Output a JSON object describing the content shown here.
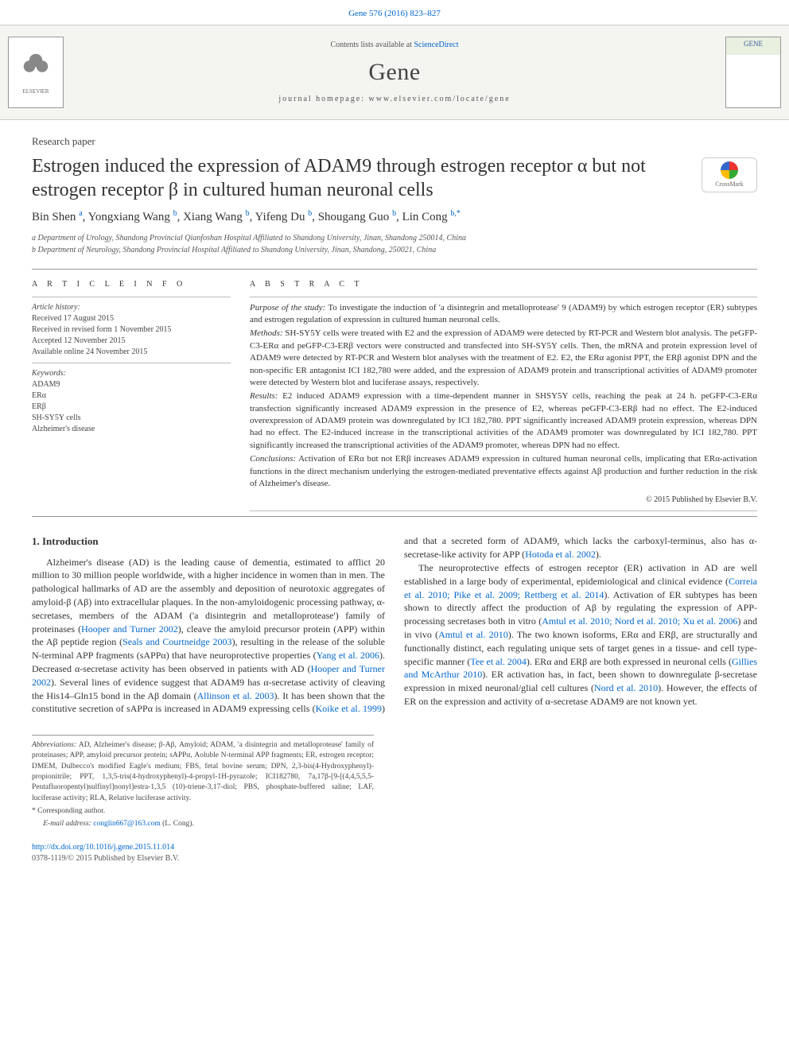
{
  "citation": "Gene 576 (2016) 823–827",
  "header": {
    "contents_prefix": "Contents lists available at ",
    "contents_link": "ScienceDirect",
    "journal_name": "Gene",
    "homepage_prefix": "journal homepage: ",
    "homepage_url": "www.elsevier.com/locate/gene",
    "publisher_name": "ELSEVIER",
    "cover_label": "GENE"
  },
  "article": {
    "type": "Research paper",
    "title": "Estrogen induced the expression of ADAM9 through estrogen receptor α but not estrogen receptor β in cultured human neuronal cells",
    "crossmark_label": "CrossMark"
  },
  "authors_line": "Bin Shen <sup>a</sup>, Yongxiang Wang <sup>b</sup>, Xiang Wang <sup>b</sup>, Yifeng Du <sup>b</sup>, Shougang Guo <sup>b</sup>, Lin Cong <sup>b,*</sup>",
  "affiliations": [
    "a Department of Urology, Shandong Provincial Qianfoshan Hospital Affiliated to Shandong University, Jinan, Shandong 250014, China",
    "b Department of Neurology, Shandong Provincial Hospital Affiliated to Shandong University, Jinan, Shandong, 250021, China"
  ],
  "article_info": {
    "head": "A R T I C L E   I N F O",
    "history_head": "Article history:",
    "history": [
      "Received 17 August 2015",
      "Received in revised form 1 November 2015",
      "Accepted 12 November 2015",
      "Available online 24 November 2015"
    ],
    "keywords_head": "Keywords:",
    "keywords": [
      "ADAM9",
      "ERα",
      "ERβ",
      "SH-SY5Y cells",
      "Alzheimer's disease"
    ]
  },
  "abstract": {
    "head": "A B S T R A C T",
    "purpose_label": "Purpose of the study:",
    "purpose": " To investigate the induction of 'a disintegrin and metalloprotease' 9 (ADAM9) by which estrogen receptor (ER) subtypes and estrogen regulation of expression in cultured human neuronal cells.",
    "methods_label": "Methods:",
    "methods": " SH-SY5Y cells were treated with E2 and the expression of ADAM9 were detected by RT-PCR and Western blot analysis. The peGFP-C3-ERα and peGFP-C3-ERβ vectors were constructed and transfected into SH-SY5Y cells. Then, the mRNA and protein expression level of ADAM9 were detected by RT-PCR and Western blot analyses with the treatment of E2. E2, the ERα agonist PPT, the ERβ agonist DPN and the non-specific ER antagonist ICI 182,780 were added, and the expression of ADAM9 protein and transcriptional activities of ADAM9 promoter were detected by Western blot and luciferase assays, respectively.",
    "results_label": "Results:",
    "results": " E2 induced ADAM9 expression with a time-dependent manner in SHSY5Y cells, reaching the peak at 24 h. peGFP-C3-ERα transfection significantly increased ADAM9 expression in the presence of E2, whereas peGFP-C3-ERβ had no effect. The E2-induced overexpression of ADAM9 protein was downregulated by ICI 182,780. PPT significantly increased ADAM9 protein expression, whereas DPN had no effect. The E2-induced increase in the transcriptional activities of the ADAM9 promoter was downregulated by ICI 182,780. PPT significantly increased the transcriptional activities of the ADAM9 promoter, whereas DPN had no effect.",
    "conclusions_label": "Conclusions:",
    "conclusions": " Activation of ERα but not ERβ increases ADAM9 expression in cultured human neuronal cells, implicating that ERα-activation functions in the direct mechanism underlying the estrogen-mediated preventative effects against Aβ production and further reduction in the risk of Alzheimer's disease.",
    "copyright": "© 2015 Published by Elsevier B.V."
  },
  "intro": {
    "heading": "1. Introduction",
    "p1a": "Alzheimer's disease (AD) is the leading cause of dementia, estimated to afflict 20 million to 30 million people worldwide, with a higher incidence in women than in men. The pathological hallmarks of AD are the assembly and deposition of neurotoxic aggregates of amyloid-β (Aβ) into extracellular plaques. In the non-amyloidogenic processing pathway, α-secretases, members of the ADAM ('a disintegrin and metalloprotease') family of proteinases (",
    "p1_link1": "Hooper and Turner 2002",
    "p1b": "), cleave the amyloid precursor protein (APP) within the Aβ peptide region (",
    "p1_link2": "Seals and Courtneidge 2003",
    "p1c": "), resulting in the release of the soluble N-terminal APP fragments (sAPPα) that have neuroprotective properties (",
    "p1_link3": "Yang et al. 2006",
    "p1d": "). Decreased α-secretase activity has been observed in patients with AD (",
    "p1_link4": "Hooper and Turner 2002",
    "p1e": "). Several lines of evidence suggest that ADAM9 has α-secretase activity of cleaving the His14–Gln15 bond in the Aβ domain (",
    "p1_link5": "Allinson et al. 2003",
    "p1f": "). It has been shown that the constitutive secretion of sAPPα is increased in ADAM9 expressing cells (",
    "p1_link6": "Koike et al. 1999",
    "p1g": ") and that a secreted form of ADAM9, which lacks the carboxyl-terminus, also has α-secretase-like activity for APP (",
    "p1_link7": "Hotoda et al. 2002",
    "p1h": ").",
    "p2a": "The neuroprotective effects of estrogen receptor (ER) activation in AD are well established in a large body of experimental, epidemiological and clinical evidence (",
    "p2_link1": "Correia et al. 2010; Pike et al. 2009; Rettberg et al. 2014",
    "p2b": "). Activation of ER subtypes has been shown to directly affect the production of Aβ by regulating the expression of APP-processing secretases both in vitro (",
    "p2_link2": "Amtul et al. 2010; Nord et al. 2010; Xu et al. 2006",
    "p2c": ") and in vivo (",
    "p2_link3": "Amtul et al. 2010",
    "p2d": "). The two known isoforms, ERα and ERβ, are structurally and functionally distinct, each regulating unique sets of target genes in a tissue- and cell type-specific manner (",
    "p2_link4": "Tee et al. 2004",
    "p2e": "). ERα and ERβ are both expressed in neuronal cells (",
    "p2_link5": "Gillies and McArthur 2010",
    "p2f": "). ER activation has, in fact, been shown to downregulate β-secretase expression in mixed neuronal/glial cell cultures (",
    "p2_link6": "Nord et al. 2010",
    "p2g": "). However, the effects of ER on the expression and activity of α-secretase ADAM9 are not known yet."
  },
  "footnotes": {
    "abbrev_label": "Abbreviations:",
    "abbrev": " AD, Alzheimer's disease; β-Aβ, Amyloid; ADAM, 'a disintegrin and metalloprotease' family of proteinases; APP, amyloid precursor protein; sAPPα, Aoluble N-terminal APP fragments; ER, estrogen receptor; DMEM, Dulbecco's modified Eagle's medium; FBS, fetal bovine serum; DPN, 2,3-bis(4-Hydroxyphenyl)-propionitrile; PPT, 1,3,5-tris(4-hydroxyphenyl)-4-propyl-1H-pyrazole; ICI182780, 7a,17β-[9-[(4,4,5,5,5-Pentafluoropentyl)sulfinyl]nonyl]estra-1,3,5 (10)-triene-3,17-diol; PBS, phosphate-buffered saline; LAF, luciferase activity; RLA, Relative luciferase activity.",
    "corr_label": "* Corresponding author.",
    "email_label": "E-mail address: ",
    "email": "conglin667@163.com",
    "email_suffix": " (L. Cong)."
  },
  "doi": {
    "url": "http://dx.doi.org/10.1016/j.gene.2015.11.014",
    "issn_line": "0378-1119/© 2015 Published by Elsevier B.V."
  },
  "colors": {
    "link": "#0066cc",
    "text": "#333333",
    "muted": "#555555",
    "rule": "#999999",
    "band_bg": "#f4f4f0"
  },
  "typography": {
    "title_fontsize_pt": 18,
    "journal_fontsize_pt": 22,
    "body_fontsize_pt": 9,
    "abstract_fontsize_pt": 8.5,
    "font_family": "Georgia/Times-like serif"
  }
}
